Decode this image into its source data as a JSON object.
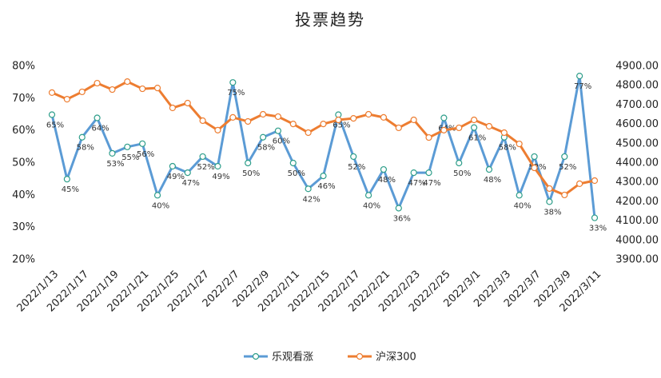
{
  "chart_data": {
    "type": "line",
    "title": "投票趋势",
    "categories": [
      "2022/1/13",
      null,
      "2022/1/17",
      null,
      "2022/1/19",
      null,
      "2022/1/21",
      null,
      "2022/1/25",
      null,
      "2022/1/27",
      null,
      "2022/2/7",
      null,
      "2022/2/9",
      null,
      "2022/2/11",
      null,
      "2022/2/15",
      null,
      "2022/2/17",
      null,
      "2022/2/21",
      null,
      "2022/2/23",
      null,
      "2022/2/25",
      null,
      "2022/3/1",
      null,
      "2022/3/3",
      null,
      "2022/3/7",
      null,
      "2022/3/9",
      null,
      "2022/3/11"
    ],
    "series": [
      {
        "name": "乐观看涨",
        "color": "#5b9bd5",
        "marker_edge": "#2e9e8a",
        "values": [
          65,
          45,
          58,
          64,
          53,
          55,
          56,
          40,
          49,
          47,
          52,
          49,
          75,
          50,
          58,
          60,
          50,
          42,
          46,
          65,
          52,
          40,
          48,
          36,
          47,
          47,
          64,
          50,
          61,
          48,
          58,
          40,
          52,
          38,
          52,
          77,
          33
        ],
        "value_labels": [
          "65%",
          "45%",
          "58%",
          "64%",
          "53%",
          "55%",
          "56%",
          "40%",
          "49%",
          "47%",
          "52%",
          "49%",
          "75%",
          "50%",
          "58%",
          "60%",
          "50%",
          "42%",
          "46%",
          "65%",
          "52%",
          "40%",
          "48%",
          "36%",
          "47%",
          "47%",
          "64%",
          "50%",
          "61%",
          "48%",
          "58%",
          "40%",
          "52%",
          "38%",
          "52%",
          "77%",
          "33%"
        ]
      },
      {
        "name": "沪深300",
        "color": "#ed7d31",
        "marker_edge": "#ed7d31",
        "axis": "y2",
        "values": [
          4764,
          4730,
          4768,
          4813,
          4780,
          4821,
          4784,
          4788,
          4685,
          4710,
          4619,
          4570,
          4636,
          4615,
          4652,
          4640,
          4602,
          4557,
          4602,
          4623,
          4631,
          4652,
          4636,
          4582,
          4623,
          4532,
          4570,
          4582,
          4623,
          4590,
          4557,
          4499,
          4375,
          4268,
          4235,
          4293,
          4309
        ]
      }
    ],
    "ylim": [
      20,
      80
    ],
    "yticks": [
      {
        "value": 20,
        "label": "20%"
      },
      {
        "value": 30,
        "label": "30%"
      },
      {
        "value": 40,
        "label": "40%"
      },
      {
        "value": 50,
        "label": "50%"
      },
      {
        "value": 60,
        "label": "60%"
      },
      {
        "value": 70,
        "label": "70%"
      },
      {
        "value": 80,
        "label": "80%"
      }
    ],
    "y2lim": [
      3900,
      4900
    ],
    "y2ticks": [
      {
        "value": 3900,
        "label": "3900.00"
      },
      {
        "value": 4000,
        "label": "4000.00"
      },
      {
        "value": 4100,
        "label": "4100.00"
      },
      {
        "value": 4200,
        "label": "4200.00"
      },
      {
        "value": 4300,
        "label": "4300.00"
      },
      {
        "value": 4400,
        "label": "4400.00"
      },
      {
        "value": 4500,
        "label": "4500.00"
      },
      {
        "value": 4600,
        "label": "4600.00"
      },
      {
        "value": 4700,
        "label": "4700.00"
      },
      {
        "value": 4800,
        "label": "4800.00"
      },
      {
        "value": 4900,
        "label": "4900.00"
      }
    ],
    "grid": false,
    "legend": "bottom"
  }
}
